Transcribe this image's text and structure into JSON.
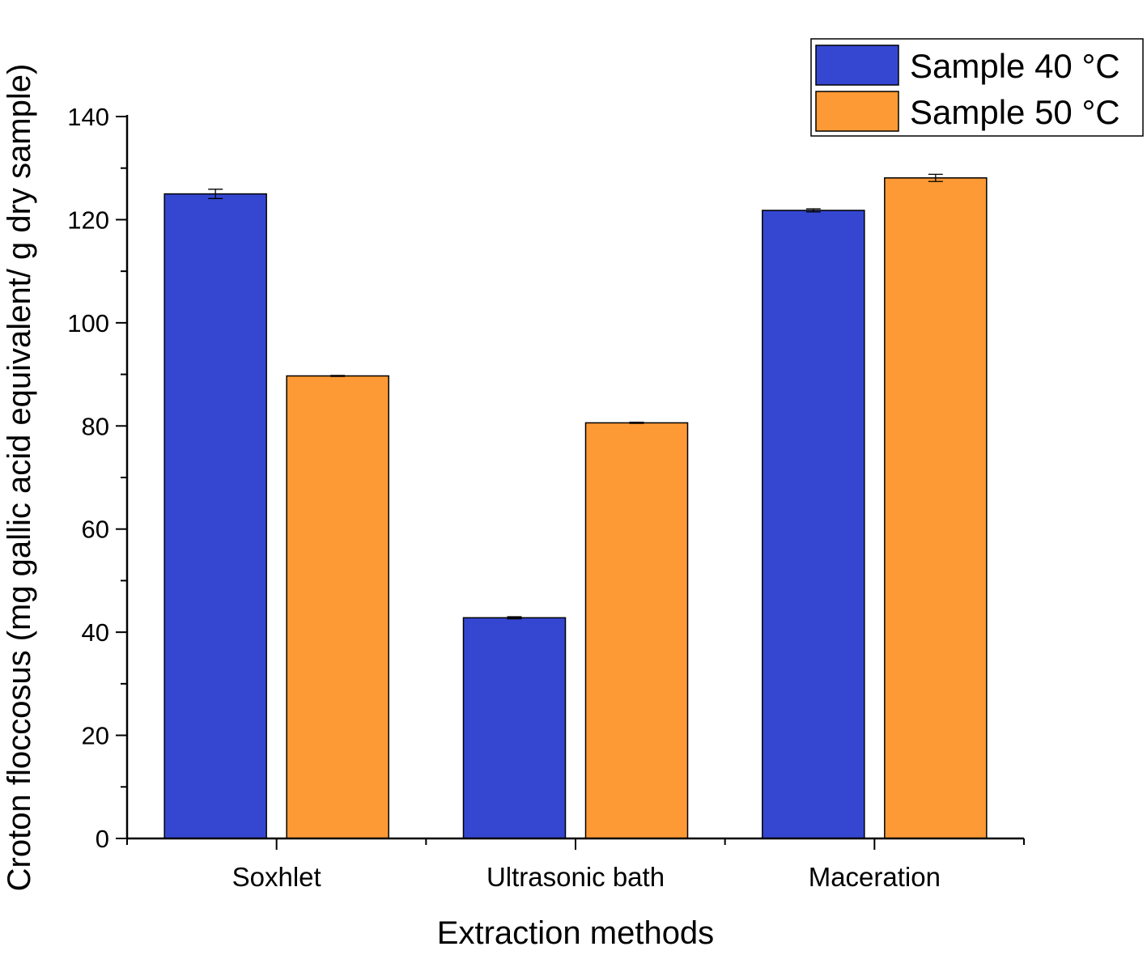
{
  "chart_data": {
    "type": "bar",
    "xlabel": "Extraction methods",
    "ylabel": "Croton floccosus (mg gallic acid equivalent/ g dry sample)",
    "ylim": [
      0,
      140
    ],
    "yticks": [
      0,
      20,
      40,
      60,
      80,
      100,
      120,
      140
    ],
    "categories": [
      "Soxhlet",
      "Ultrasonic bath",
      "Maceration"
    ],
    "series": [
      {
        "name": "Sample 40 °C",
        "color": "#3547d1",
        "values": [
          125.0,
          42.8,
          121.8
        ],
        "errors": [
          0.9,
          0.2,
          0.3
        ]
      },
      {
        "name": "Sample 50 °C",
        "color": "#fd9a36",
        "values": [
          89.7,
          80.6,
          128.1
        ],
        "errors": [
          0.1,
          0.1,
          0.7
        ]
      }
    ],
    "legend": "top-right",
    "grid": false
  }
}
